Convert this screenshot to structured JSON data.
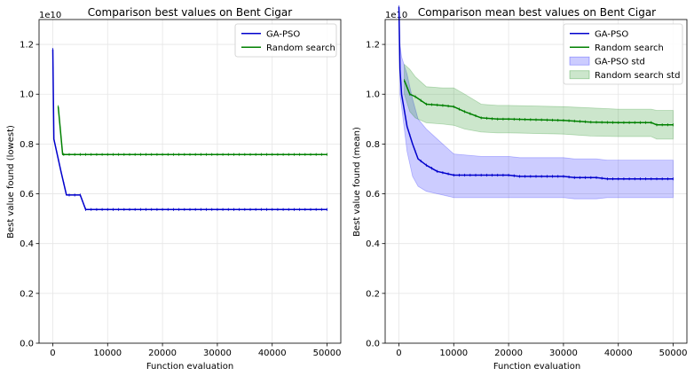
{
  "chart_data": [
    {
      "type": "line",
      "title": "Comparison best values on Bent Cigar",
      "xlabel": "Function evaluation",
      "ylabel": "Best value found (lowest)",
      "offset_text": "1e10",
      "xlim": [
        -2500,
        52500
      ],
      "ylim": [
        0.0,
        1.3
      ],
      "xticks": [
        0,
        10000,
        20000,
        30000,
        40000,
        50000
      ],
      "xtick_labels": [
        "0",
        "10000",
        "20000",
        "30000",
        "40000",
        "50000"
      ],
      "yticks": [
        0.0,
        0.2,
        0.4,
        0.6,
        0.8,
        1.0,
        1.2
      ],
      "ytick_labels": [
        "0.0",
        "0.2",
        "0.4",
        "0.6",
        "0.8",
        "1.0",
        "1.2"
      ],
      "grid": true,
      "legend_position": "top-right",
      "series": [
        {
          "name": "GA-PSO",
          "color": "#0000cc",
          "x": [
            0,
            200,
            1500,
            2500,
            4000,
            5000,
            6000,
            50000
          ],
          "y": [
            1.18,
            0.82,
            0.69,
            0.595,
            0.595,
            0.595,
            0.537,
            0.537
          ]
        },
        {
          "name": "Random search",
          "color": "#008000",
          "x": [
            1000,
            1800,
            50000
          ],
          "y": [
            0.95,
            0.758,
            0.758
          ]
        }
      ]
    },
    {
      "type": "area",
      "title": "Comparison mean best values on Bent Cigar",
      "xlabel": "Function evaluation",
      "ylabel": "Best value found (mean)",
      "offset_text": "1e10",
      "xlim": [
        -2500,
        52500
      ],
      "ylim": [
        0.0,
        1.3
      ],
      "xticks": [
        0,
        10000,
        20000,
        30000,
        40000,
        50000
      ],
      "xtick_labels": [
        "0",
        "10000",
        "20000",
        "30000",
        "40000",
        "50000"
      ],
      "yticks": [
        0.0,
        0.2,
        0.4,
        0.6,
        0.8,
        1.0,
        1.2
      ],
      "ytick_labels": [
        "0.0",
        "0.2",
        "0.4",
        "0.6",
        "0.8",
        "1.0",
        "1.2"
      ],
      "grid": true,
      "legend_position": "top-right",
      "series": [
        {
          "name": "GA-PSO",
          "color": "#0000cc",
          "x": [
            0,
            200,
            500,
            1500,
            2500,
            3500,
            5000,
            7000,
            9000,
            10000,
            15000,
            20000,
            22000,
            30000,
            32000,
            36000,
            38000,
            50000
          ],
          "y": [
            1.35,
            1.1,
            1.0,
            0.87,
            0.8,
            0.74,
            0.715,
            0.69,
            0.68,
            0.675,
            0.675,
            0.675,
            0.67,
            0.67,
            0.665,
            0.665,
            0.66,
            0.66
          ]
        },
        {
          "name": "Random search",
          "color": "#008000",
          "x": [
            1000,
            2000,
            3000,
            5000,
            8000,
            10000,
            12000,
            15000,
            18000,
            20000,
            30000,
            35000,
            40000,
            46000,
            47000,
            50000
          ],
          "y": [
            1.055,
            1.0,
            0.99,
            0.96,
            0.955,
            0.95,
            0.93,
            0.905,
            0.9,
            0.9,
            0.895,
            0.888,
            0.886,
            0.886,
            0.877,
            0.877
          ]
        },
        {
          "name": "GA-PSO std",
          "color": "#0000ff",
          "x": [
            0,
            200,
            500,
            1500,
            2500,
            3500,
            5000,
            7000,
            9000,
            10000,
            15000,
            20000,
            22000,
            30000,
            32000,
            36000,
            38000,
            50000
          ],
          "upper": [
            1.35,
            1.2,
            1.15,
            1.08,
            0.98,
            0.9,
            0.86,
            0.82,
            0.78,
            0.76,
            0.75,
            0.75,
            0.745,
            0.745,
            0.74,
            0.74,
            0.735,
            0.735
          ],
          "lower": [
            1.35,
            1.0,
            0.95,
            0.77,
            0.67,
            0.63,
            0.61,
            0.6,
            0.59,
            0.585,
            0.585,
            0.585,
            0.585,
            0.585,
            0.58,
            0.58,
            0.585,
            0.585
          ]
        },
        {
          "name": "Random search std",
          "color": "#008000",
          "x": [
            1000,
            2000,
            3000,
            5000,
            8000,
            10000,
            12000,
            15000,
            18000,
            20000,
            30000,
            35000,
            40000,
            46000,
            47000,
            50000
          ],
          "upper": [
            1.12,
            1.1,
            1.07,
            1.03,
            1.025,
            1.025,
            1.0,
            0.96,
            0.955,
            0.955,
            0.95,
            0.945,
            0.94,
            0.94,
            0.935,
            0.935
          ],
          "lower": [
            1.0,
            0.93,
            0.905,
            0.885,
            0.88,
            0.875,
            0.86,
            0.848,
            0.845,
            0.845,
            0.84,
            0.832,
            0.83,
            0.83,
            0.82,
            0.82
          ]
        }
      ]
    }
  ]
}
